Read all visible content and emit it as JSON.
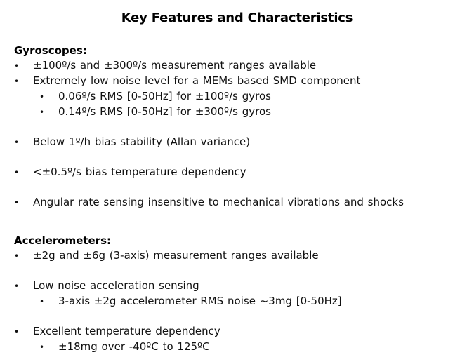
{
  "title": "Key Features and Characteristics",
  "bullet_char": "•",
  "colors": {
    "background": "#ffffff",
    "text": "#111111"
  },
  "sections": [
    {
      "heading": "Gyroscopes:",
      "items": [
        {
          "level": 1,
          "gap": false,
          "text": "±100º/s and ±300º/s measurement ranges available"
        },
        {
          "level": 1,
          "gap": false,
          "text": "Extremely low noise level for a MEMs based SMD component"
        },
        {
          "level": 2,
          "gap": false,
          "text": "0.06º/s RMS [0-50Hz] for ±100º/s gyros"
        },
        {
          "level": 2,
          "gap": false,
          "text": "0.14º/s RMS [0-50Hz] for ±300º/s gyros"
        },
        {
          "level": 1,
          "gap": true,
          "text": "Below 1º/h bias stability (Allan variance)"
        },
        {
          "level": 1,
          "gap": true,
          "text": "<±0.5º/s bias temperature dependency"
        },
        {
          "level": 1,
          "gap": true,
          "text": "Angular rate sensing insensitive to mechanical vibrations and shocks"
        }
      ]
    },
    {
      "heading": "Accelerometers:",
      "items": [
        {
          "level": 1,
          "gap": false,
          "text": "±2g and ±6g (3-axis) measurement ranges available"
        },
        {
          "level": 1,
          "gap": true,
          "text": "Low noise acceleration sensing"
        },
        {
          "level": 2,
          "gap": false,
          "text": "3-axis ±2g accelerometer RMS noise ~3mg [0-50Hz]"
        },
        {
          "level": 1,
          "gap": true,
          "text": "Excellent temperature dependency"
        },
        {
          "level": 2,
          "gap": false,
          "text": "±18mg over -40ºC to 125ºC"
        }
      ]
    }
  ]
}
